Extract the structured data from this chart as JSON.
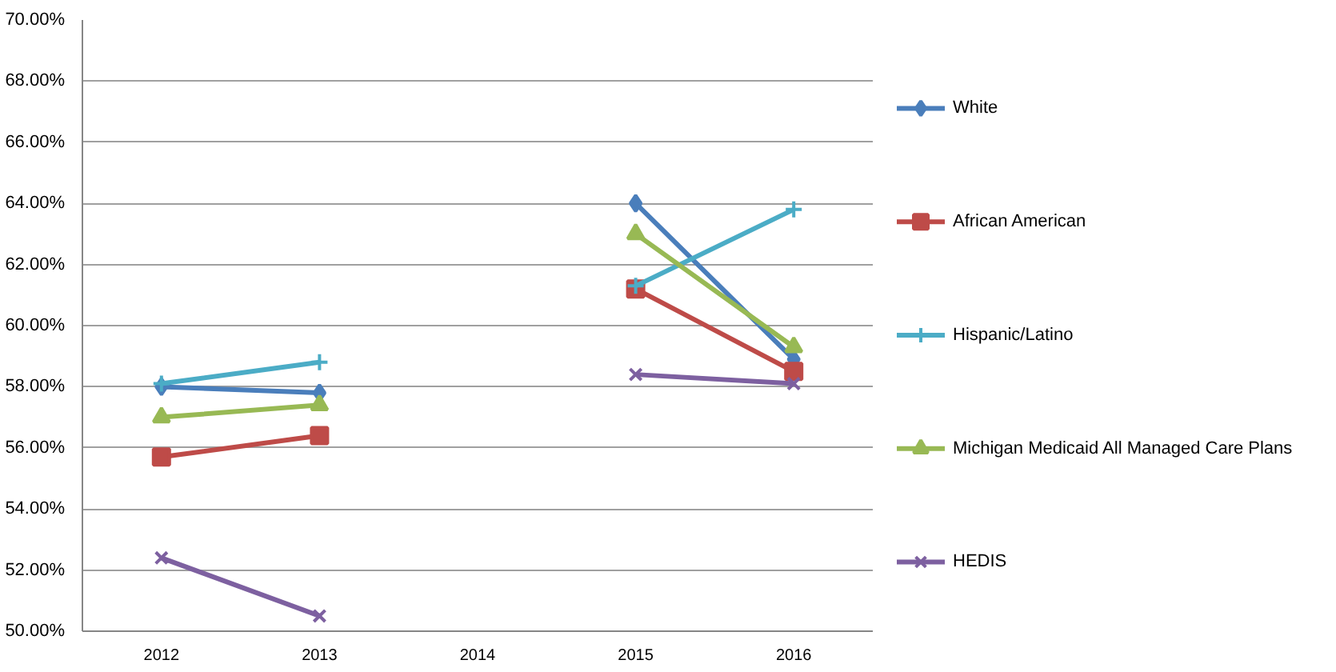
{
  "chart_data": {
    "type": "line",
    "categories": [
      "2012",
      "2013",
      "2014",
      "2015",
      "2016"
    ],
    "series": [
      {
        "name": "White",
        "color": "#4a7ebb",
        "marker": "diamond",
        "values": [
          58.0,
          57.8,
          null,
          64.0,
          58.9
        ]
      },
      {
        "name": "African American",
        "color": "#be4b48",
        "marker": "square",
        "values": [
          55.7,
          56.4,
          null,
          61.2,
          58.5
        ]
      },
      {
        "name": "Hispanic/Latino",
        "color": "#4bacc6",
        "marker": "cross",
        "values": [
          58.1,
          58.8,
          null,
          61.3,
          63.8
        ]
      },
      {
        "name": "Michigan Medicaid All Managed Care Plans",
        "color": "#98b954",
        "marker": "triangle",
        "values": [
          57.0,
          57.4,
          null,
          63.0,
          59.3
        ]
      },
      {
        "name": "HEDIS",
        "color": "#7d60a0",
        "marker": "x",
        "values": [
          52.4,
          50.5,
          null,
          58.4,
          58.1
        ]
      }
    ],
    "ylim": [
      50,
      70
    ],
    "yticks": [
      {
        "value": 50,
        "label": "50.00%"
      },
      {
        "value": 52,
        "label": "52.00%"
      },
      {
        "value": 54,
        "label": "54.00%"
      },
      {
        "value": 56,
        "label": "56.00%"
      },
      {
        "value": 58,
        "label": "58.00%"
      },
      {
        "value": 60,
        "label": "60.00%"
      },
      {
        "value": 62,
        "label": "62.00%"
      },
      {
        "value": 64,
        "label": "64.00%"
      },
      {
        "value": 66,
        "label": "66.00%"
      },
      {
        "value": 68,
        "label": "68.00%"
      },
      {
        "value": 70,
        "label": "70.00%"
      }
    ],
    "grid": "y",
    "legend": "right",
    "line_style": "solid"
  }
}
